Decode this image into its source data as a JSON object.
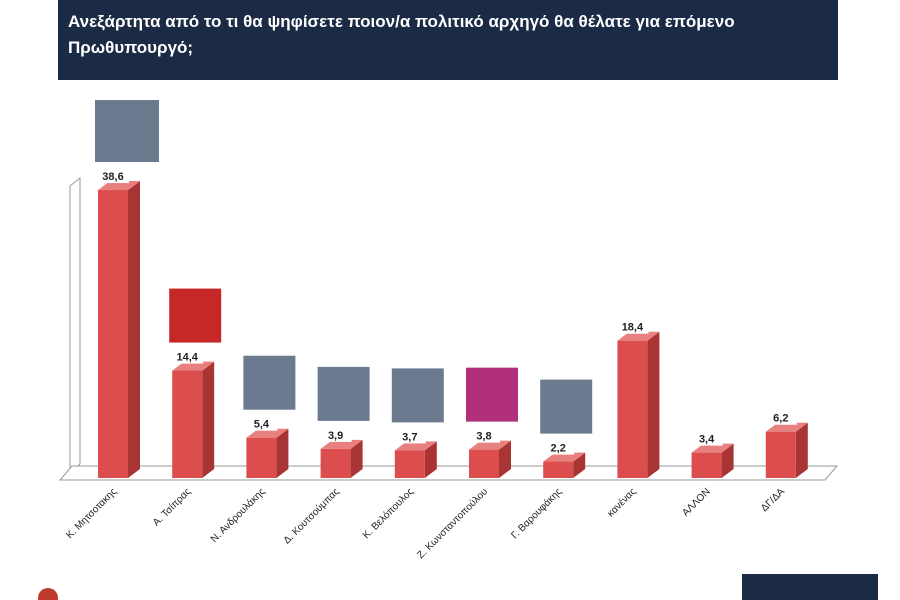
{
  "chart_data": {
    "type": "bar3d",
    "title": "Ανεξάρτητα από το τι θα ψηφίσετε ποιον/α πολιτικό αρχηγό θα θέλατε για επόμενο Πρωθυπουργό;",
    "categories": [
      "Κ. Μητσοτακης",
      "Α. Τσίπρας",
      "Ν. Ανδρουλάκης",
      "Δ. Κουτσούμπας",
      "Κ. Βελόπουλος",
      "Ζ. Κωνσταντοπούλου",
      "Γ. Βαρουφάκης",
      "κανένας",
      "ΑΛΛΟΝ",
      "ΔΓ/ΔΑ"
    ],
    "values": [
      38.6,
      14.4,
      5.4,
      3.9,
      3.7,
      3.8,
      2.2,
      18.4,
      3.4,
      6.2
    ],
    "value_labels": [
      "38,6",
      "14,4",
      "5,4",
      "3,9",
      "3,7",
      "3,8",
      "2,2",
      "18,4",
      "3,4",
      "6,2"
    ],
    "color": "#dc4d4d"
  }
}
